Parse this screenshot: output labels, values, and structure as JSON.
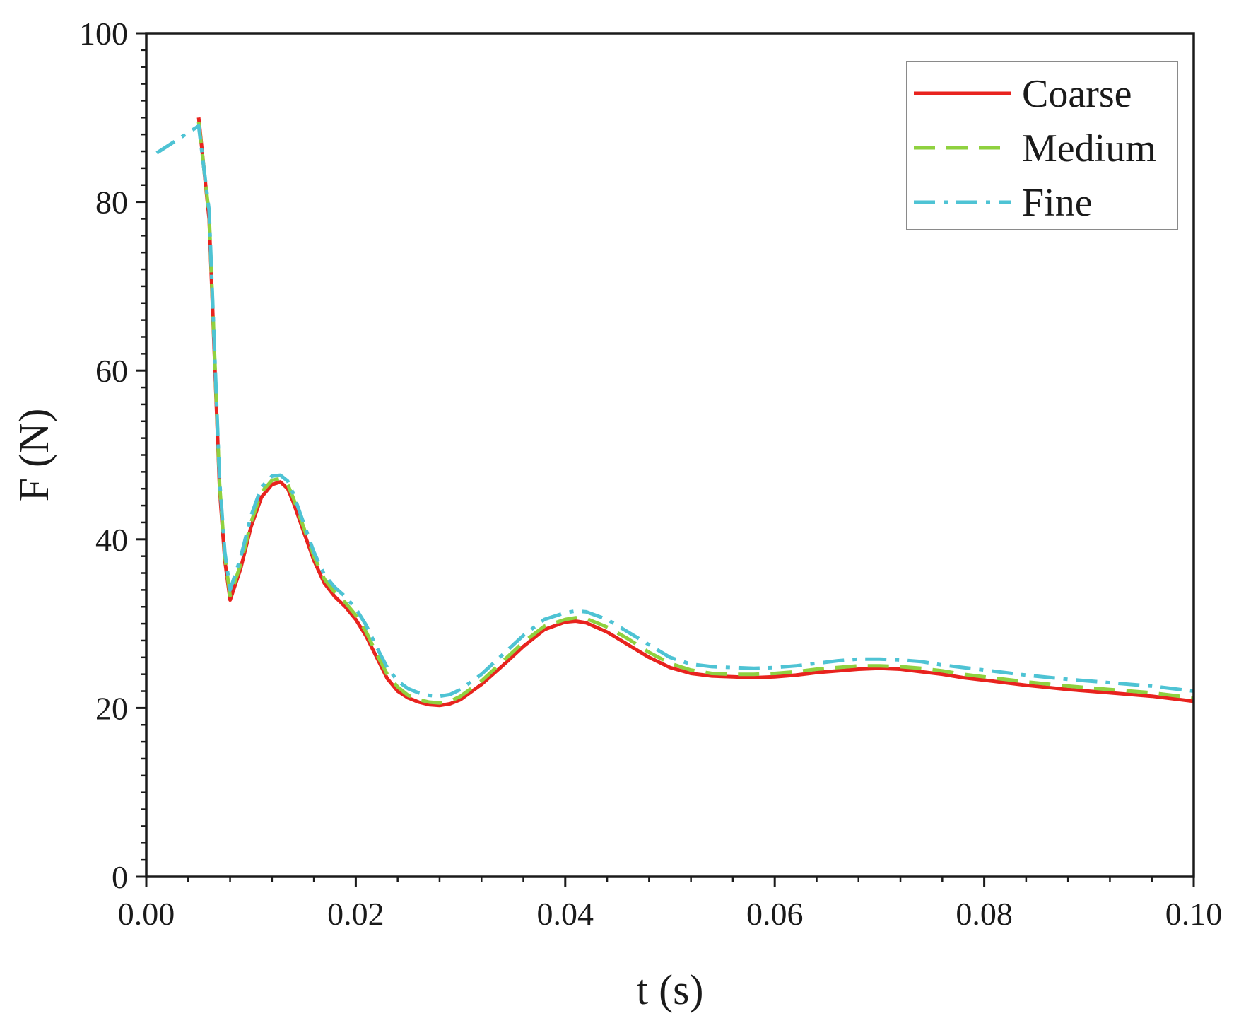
{
  "chart_data": {
    "type": "line",
    "title": "",
    "xlabel": "t (s)",
    "ylabel": "F (N)",
    "xlim": [
      0,
      0.1
    ],
    "ylim": [
      0,
      100
    ],
    "xticks": [
      0.0,
      0.02,
      0.04,
      0.06,
      0.08,
      0.1
    ],
    "xtick_labels": [
      "0.00",
      "0.02",
      "0.04",
      "0.06",
      "0.08",
      "0.10"
    ],
    "yticks": [
      0,
      20,
      40,
      60,
      80,
      100
    ],
    "ytick_labels": [
      "0",
      "20",
      "40",
      "60",
      "80",
      "100"
    ],
    "grid": false,
    "legend_position": "top-right",
    "series": [
      {
        "name": "Coarse",
        "color": "#e8231e",
        "dash": "solid",
        "x": [
          0.005,
          0.006,
          0.0065,
          0.007,
          0.0075,
          0.008,
          0.009,
          0.01,
          0.011,
          0.012,
          0.0128,
          0.0135,
          0.014,
          0.015,
          0.016,
          0.017,
          0.018,
          0.019,
          0.02,
          0.021,
          0.022,
          0.023,
          0.024,
          0.025,
          0.026,
          0.027,
          0.028,
          0.029,
          0.03,
          0.032,
          0.034,
          0.036,
          0.038,
          0.04,
          0.041,
          0.042,
          0.044,
          0.046,
          0.048,
          0.05,
          0.052,
          0.054,
          0.056,
          0.058,
          0.06,
          0.062,
          0.064,
          0.066,
          0.068,
          0.07,
          0.072,
          0.074,
          0.076,
          0.078,
          0.08,
          0.084,
          0.088,
          0.092,
          0.096,
          0.1
        ],
        "y": [
          90.0,
          78.0,
          62.0,
          46.0,
          37.5,
          32.8,
          36.5,
          41.5,
          45.0,
          46.5,
          46.8,
          46.0,
          44.5,
          41.0,
          37.5,
          34.8,
          33.2,
          32.0,
          30.5,
          28.5,
          26.0,
          23.5,
          22.0,
          21.2,
          20.7,
          20.4,
          20.3,
          20.5,
          21.0,
          22.8,
          25.0,
          27.3,
          29.3,
          30.2,
          30.3,
          30.1,
          29.0,
          27.5,
          26.0,
          24.8,
          24.1,
          23.8,
          23.7,
          23.6,
          23.7,
          23.9,
          24.2,
          24.4,
          24.6,
          24.7,
          24.6,
          24.3,
          24.0,
          23.6,
          23.3,
          22.7,
          22.2,
          21.8,
          21.4,
          20.8
        ]
      },
      {
        "name": "Medium",
        "color": "#8fd13f",
        "dash": "dashed",
        "x": [
          0.005,
          0.006,
          0.0065,
          0.007,
          0.0075,
          0.008,
          0.009,
          0.01,
          0.011,
          0.012,
          0.0128,
          0.0135,
          0.014,
          0.015,
          0.016,
          0.017,
          0.018,
          0.019,
          0.02,
          0.021,
          0.022,
          0.023,
          0.024,
          0.025,
          0.026,
          0.027,
          0.028,
          0.029,
          0.03,
          0.032,
          0.034,
          0.036,
          0.038,
          0.04,
          0.041,
          0.042,
          0.044,
          0.046,
          0.048,
          0.05,
          0.052,
          0.054,
          0.056,
          0.058,
          0.06,
          0.062,
          0.064,
          0.066,
          0.068,
          0.07,
          0.072,
          0.074,
          0.076,
          0.078,
          0.08,
          0.084,
          0.088,
          0.092,
          0.096,
          0.1
        ],
        "y": [
          89.5,
          78.5,
          62.5,
          46.5,
          38.0,
          33.3,
          37.0,
          42.0,
          45.6,
          47.0,
          47.2,
          46.5,
          45.0,
          41.5,
          38.0,
          35.3,
          33.7,
          32.5,
          31.0,
          29.0,
          26.4,
          24.0,
          22.5,
          21.5,
          21.0,
          20.7,
          20.6,
          20.8,
          21.4,
          23.2,
          25.5,
          27.8,
          29.7,
          30.5,
          30.7,
          30.6,
          29.6,
          28.2,
          26.6,
          25.3,
          24.5,
          24.1,
          24.0,
          24.0,
          24.1,
          24.3,
          24.6,
          24.8,
          25.0,
          25.0,
          24.9,
          24.7,
          24.4,
          24.0,
          23.7,
          23.1,
          22.6,
          22.2,
          21.8,
          21.2
        ]
      },
      {
        "name": "Fine",
        "color": "#4ec3d4",
        "dash": "dashdot",
        "x": [
          0.001,
          0.005,
          0.006,
          0.0065,
          0.007,
          0.0075,
          0.008,
          0.009,
          0.01,
          0.011,
          0.012,
          0.0128,
          0.0135,
          0.014,
          0.015,
          0.016,
          0.017,
          0.018,
          0.019,
          0.02,
          0.021,
          0.022,
          0.023,
          0.024,
          0.025,
          0.026,
          0.027,
          0.028,
          0.029,
          0.03,
          0.032,
          0.034,
          0.036,
          0.038,
          0.04,
          0.041,
          0.042,
          0.044,
          0.046,
          0.048,
          0.05,
          0.052,
          0.054,
          0.056,
          0.058,
          0.06,
          0.062,
          0.064,
          0.066,
          0.068,
          0.07,
          0.072,
          0.074,
          0.076,
          0.078,
          0.08,
          0.084,
          0.088,
          0.092,
          0.096,
          0.1
        ],
        "y": [
          85.8,
          89.0,
          79.0,
          63.0,
          47.0,
          38.5,
          34.0,
          37.8,
          42.8,
          46.2,
          47.5,
          47.6,
          46.9,
          45.5,
          42.0,
          38.5,
          35.8,
          34.3,
          33.2,
          31.8,
          29.8,
          27.2,
          24.8,
          23.2,
          22.3,
          21.8,
          21.5,
          21.4,
          21.6,
          22.2,
          24.0,
          26.3,
          28.6,
          30.5,
          31.3,
          31.5,
          31.4,
          30.5,
          29.0,
          27.5,
          26.0,
          25.2,
          24.9,
          24.8,
          24.7,
          24.8,
          25.0,
          25.3,
          25.6,
          25.8,
          25.8,
          25.7,
          25.5,
          25.1,
          24.8,
          24.5,
          23.9,
          23.4,
          23.0,
          22.6,
          22.0
        ]
      }
    ]
  }
}
